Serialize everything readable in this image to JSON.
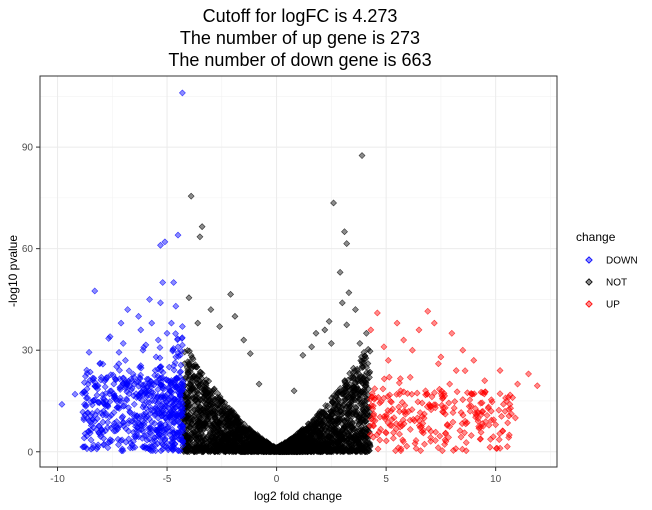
{
  "chart_data": {
    "type": "scatter",
    "title_lines": [
      "Cutoff for logFC is 4.273",
      "The number of up gene is 273",
      "The number of down gene is 663"
    ],
    "xlabel": "log2 fold change",
    "ylabel": "-log10 pvalue",
    "xlim": [
      -10.8,
      12.8
    ],
    "ylim": [
      -4.5,
      111
    ],
    "x_ticks": [
      -10,
      -5,
      0,
      5,
      10
    ],
    "x_tick_labels": [
      "-10",
      "-5",
      "0",
      "5",
      "10"
    ],
    "y_ticks": [
      0,
      30,
      60,
      90
    ],
    "y_tick_labels": [
      "0",
      "30",
      "60",
      "90"
    ],
    "grid": true,
    "cutoff": 4.273,
    "legend": {
      "title": "change",
      "position": "right",
      "items": [
        {
          "label": "DOWN",
          "color": "#0000FF"
        },
        {
          "label": "NOT",
          "color": "#000000"
        },
        {
          "label": "UP",
          "color": "#FF0000"
        }
      ]
    },
    "series": [
      {
        "name": "DOWN",
        "color": "#0000FF",
        "approx_count": 663,
        "x_range": [
          -10,
          -4.273
        ],
        "points": [
          [
            -9.8,
            14
          ],
          [
            -9.2,
            17
          ],
          [
            -8.6,
            20
          ],
          [
            -8.3,
            47.5
          ],
          [
            -8.0,
            22
          ],
          [
            -7.6,
            34
          ],
          [
            -7.4,
            16
          ],
          [
            -7.2,
            26
          ],
          [
            -7.0,
            32
          ],
          [
            -6.8,
            42
          ],
          [
            -6.5,
            22
          ],
          [
            -6.3,
            40
          ],
          [
            -6.1,
            30
          ],
          [
            -5.9,
            19
          ],
          [
            -5.7,
            38
          ],
          [
            -5.5,
            28
          ],
          [
            -5.3,
            44
          ],
          [
            -5.3,
            61
          ],
          [
            -5.1,
            62
          ],
          [
            -5.0,
            35
          ],
          [
            -4.9,
            25
          ],
          [
            -4.7,
            50
          ],
          [
            -4.6,
            43
          ],
          [
            -4.5,
            64
          ],
          [
            -4.5,
            31
          ],
          [
            -4.4,
            18
          ],
          [
            -4.3,
            106
          ],
          [
            -4.3,
            37
          ],
          [
            -7.9,
            12
          ],
          [
            -6.6,
            9
          ],
          [
            -5.8,
            45
          ],
          [
            -5.6,
            12
          ],
          [
            -4.8,
            38
          ],
          [
            -5.2,
            50
          ],
          [
            -6.9,
            27
          ],
          [
            -8.8,
            10
          ],
          [
            -7.1,
            38
          ],
          [
            -6.2,
            36
          ],
          [
            -5.4,
            33
          ],
          [
            -4.6,
            28
          ]
        ]
      },
      {
        "name": "NOT",
        "color": "#000000",
        "x_range": [
          -4.273,
          4.273
        ],
        "points": [
          [
            -3.9,
            75.5
          ],
          [
            -3.4,
            66.5
          ],
          [
            -3.5,
            63.5
          ],
          [
            -2.1,
            46.5
          ],
          [
            -3.0,
            42
          ],
          [
            -1.9,
            40
          ],
          [
            -1.5,
            33
          ],
          [
            -3.6,
            38
          ],
          [
            -2.6,
            37
          ],
          [
            -1.2,
            29
          ],
          [
            -4.0,
            45.5
          ],
          [
            3.9,
            87.5
          ],
          [
            2.6,
            73.5
          ],
          [
            3.1,
            65
          ],
          [
            3.2,
            61.5
          ],
          [
            2.9,
            53
          ],
          [
            3.3,
            47
          ],
          [
            3.0,
            44
          ],
          [
            3.6,
            42
          ],
          [
            3.2,
            37.5
          ],
          [
            2.4,
            38.5
          ],
          [
            2.2,
            36
          ],
          [
            1.8,
            35
          ],
          [
            2.5,
            32
          ],
          [
            1.6,
            31
          ],
          [
            1.2,
            28.5
          ],
          [
            3.8,
            32
          ],
          [
            4.1,
            35
          ],
          [
            -0.8,
            20
          ],
          [
            0.8,
            18
          ]
        ]
      },
      {
        "name": "UP",
        "color": "#FF0000",
        "approx_count": 273,
        "x_range": [
          4.273,
          12
        ],
        "points": [
          [
            4.3,
            36
          ],
          [
            4.6,
            41
          ],
          [
            5.5,
            38
          ],
          [
            6.9,
            41.5
          ],
          [
            7.2,
            38
          ],
          [
            8.0,
            35
          ],
          [
            8.5,
            30
          ],
          [
            9.0,
            27
          ],
          [
            9.5,
            21
          ],
          [
            10.2,
            24
          ],
          [
            10.5,
            15
          ],
          [
            11.0,
            20
          ],
          [
            11.5,
            23
          ],
          [
            11.9,
            19.5
          ],
          [
            6.2,
            30
          ],
          [
            7.5,
            28
          ],
          [
            8.2,
            24
          ],
          [
            6.8,
            18
          ],
          [
            9.8,
            12
          ],
          [
            10.9,
            10
          ],
          [
            5.8,
            33
          ],
          [
            7.7,
            13
          ],
          [
            8.9,
            17
          ],
          [
            6.5,
            36
          ],
          [
            5.1,
            27
          ],
          [
            4.9,
            31
          ],
          [
            9.2,
            9
          ],
          [
            10.0,
            8
          ],
          [
            7.9,
            20
          ],
          [
            6.1,
            22
          ]
        ]
      }
    ]
  }
}
